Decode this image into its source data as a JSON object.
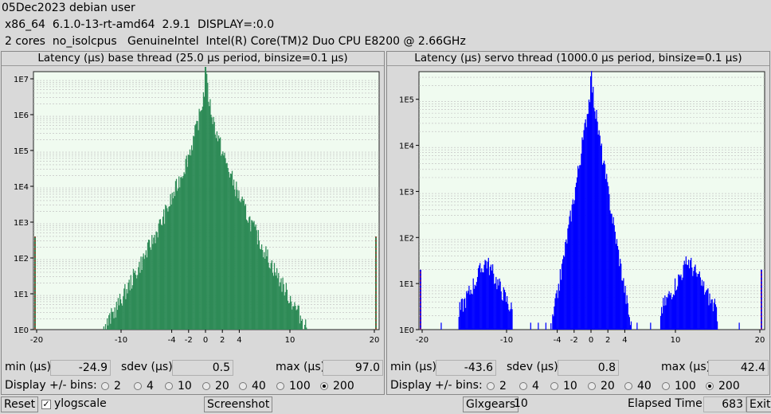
{
  "header": {
    "line1": "05Dec2023 debian user",
    "line2": "x86_64  6.1.0-13-rt-amd64  2.9.1  DISPLAY=:0.0",
    "line3": "2 cores  no_isolcpus   GenuineIntel  Intel(R) Core(TM)2 Duo CPU E8200 @ 2.66GHz"
  },
  "panels": [
    {
      "title": "Latency (µs) base thread (25.0 µs period, binsize=0.1 µs)",
      "min_label": "min (µs)",
      "min": "-24.9",
      "sdev_label": "sdev (µs)",
      "sdev": "0.5",
      "max_label": "max (µs)",
      "max": "97.0",
      "bins_label": "Display +/- bins:",
      "bins_options": [
        "2",
        "4",
        "10",
        "20",
        "40",
        "100",
        "200"
      ],
      "bins_selected": "200"
    },
    {
      "title": "Latency (µs) servo thread (1000.0 µs period, binsize=0.1 µs)",
      "min_label": "min (µs)",
      "min": "-43.6",
      "sdev_label": "sdev (µs)",
      "sdev": "0.8",
      "max_label": "max (µs)",
      "max": "42.4",
      "bins_label": "Display +/- bins:",
      "bins_options": [
        "2",
        "4",
        "10",
        "20",
        "40",
        "100",
        "200"
      ],
      "bins_selected": "200"
    }
  ],
  "chart_data": [
    {
      "type": "bar",
      "color": "#2e8b57",
      "xlim": [
        -20,
        20
      ],
      "x_ticks": [
        "-20",
        "-10",
        "-4",
        "-2",
        "0",
        "2",
        "4",
        "10",
        "20"
      ],
      "y_scale": "log",
      "y_ticks": [
        "1E0",
        "1E1",
        "1E2",
        "1E3",
        "1E4",
        "1E5",
        "1E6",
        "1E7"
      ],
      "ylim_log": [
        0,
        7.2
      ],
      "peak_log": 7.4,
      "edge_markers_log": 2.6
    },
    {
      "type": "bar",
      "color": "#0000ff",
      "xlim": [
        -20,
        20
      ],
      "x_ticks": [
        "-20",
        "-10",
        "-4",
        "-2",
        "0",
        "2",
        "4",
        "10",
        "20"
      ],
      "y_scale": "log",
      "y_ticks": [
        "1E0",
        "1E1",
        "1E2",
        "1E3",
        "1E4",
        "1E5"
      ],
      "ylim_log": [
        0,
        5.6
      ],
      "peak_log": 5.5,
      "edge_markers_log": 1.3
    }
  ],
  "footer": {
    "reset": "Reset",
    "ylogscale": "ylogscale",
    "ylogscale_checked": true,
    "screenshot": "Screenshot",
    "glxgears": "Glxgears",
    "glxgears_count": "10",
    "elapsed_label": "Elapsed Time:",
    "elapsed": "683",
    "exit": "Exit"
  }
}
